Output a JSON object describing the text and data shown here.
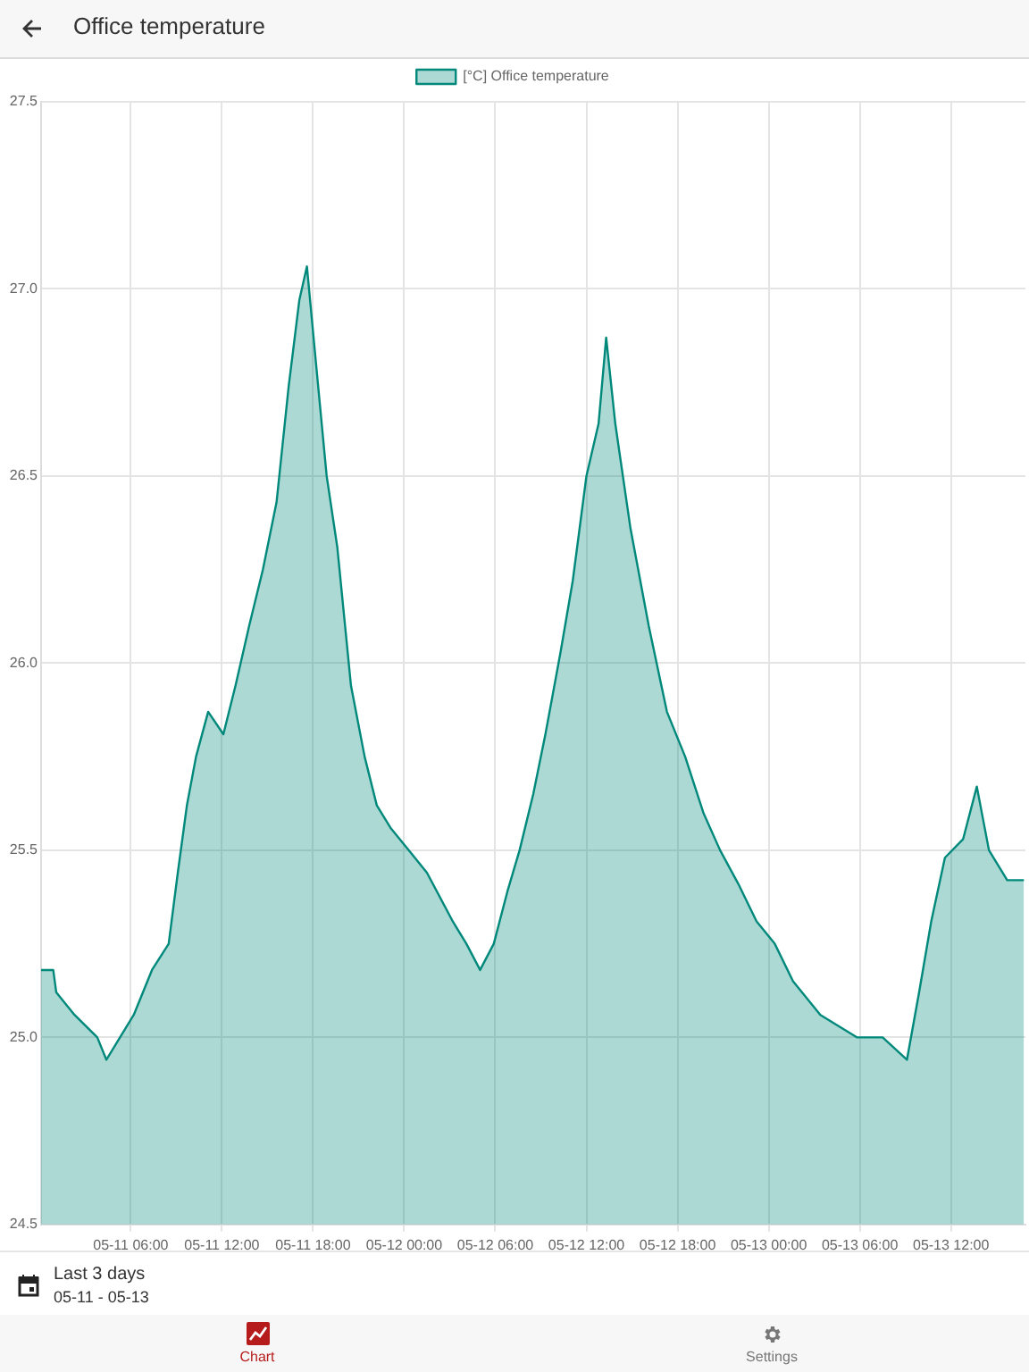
{
  "chart_data": {
    "type": "area",
    "title": "Office temperature",
    "x": [
      "--05-11T00:06",
      "--05-11T00:54",
      "--05-11T01:06",
      "--05-11T02:18",
      "--05-11T03:48",
      "--05-11T04:24",
      "--05-11T06:12",
      "--05-11T07:24",
      "--05-11T08:30",
      "--05-11T09:06",
      "--05-11T09:42",
      "--05-11T10:18",
      "--05-11T11:06",
      "--05-11T12:06",
      "--05-11T12:54",
      "--05-11T13:48",
      "--05-11T14:42",
      "--05-11T15:36",
      "--05-11T16:24",
      "--05-11T17:06",
      "--05-11T17:36",
      "--05-11T18:12",
      "--05-11T18:54",
      "--05-11T19:36",
      "--05-11T20:30",
      "--05-11T21:24",
      "--05-11T22:12",
      "--05-11T23:06",
      "--05-12T00:18",
      "--05-12T01:30",
      "--05-12T03:12",
      "--05-12T04:06",
      "--05-12T05:00",
      "--05-12T05:54",
      "--05-12T06:48",
      "--05-12T07:36",
      "--05-12T08:30",
      "--05-12T09:18",
      "--05-12T10:18",
      "--05-12T11:06",
      "--05-12T12:00",
      "--05-12T12:48",
      "--05-12T13:18",
      "--05-12T13:54",
      "--05-12T14:54",
      "--05-12T16:06",
      "--05-12T17:18",
      "--05-12T18:30",
      "--05-12T19:42",
      "--05-12T20:48",
      "--05-12T22:00",
      "--05-12T23:12",
      "--05-13T00:24",
      "--05-13T01:36",
      "--05-13T03:24",
      "--05-13T05:48",
      "--05-13T07:30",
      "--05-13T09:06",
      "--05-13T09:54",
      "--05-13T10:42",
      "--05-13T11:36",
      "--05-13T12:48",
      "--05-13T13:42",
      "--05-13T14:30",
      "--05-13T15:42",
      "--05-13T16:48"
    ],
    "series": [
      {
        "name": "[°C] Office temperature",
        "color": "#00897b",
        "values": [
          25.18,
          25.18,
          25.12,
          25.06,
          25.0,
          24.94,
          25.06,
          25.18,
          25.25,
          25.44,
          25.62,
          25.75,
          25.87,
          25.81,
          25.94,
          26.1,
          26.25,
          26.43,
          26.74,
          26.97,
          27.06,
          26.8,
          26.5,
          26.31,
          25.94,
          25.75,
          25.62,
          25.56,
          25.5,
          25.44,
          25.31,
          25.25,
          25.18,
          25.25,
          25.39,
          25.5,
          25.65,
          25.81,
          26.03,
          26.22,
          26.5,
          26.64,
          26.87,
          26.64,
          26.36,
          26.1,
          25.87,
          25.75,
          25.6,
          25.5,
          25.41,
          25.31,
          25.25,
          25.15,
          25.06,
          25.0,
          25.0,
          24.94,
          25.12,
          25.31,
          25.48,
          25.53,
          25.67,
          25.5,
          25.42,
          25.42
        ]
      }
    ],
    "xlim": [
      "--05-11T00:06",
      "--05-13T16:54"
    ],
    "xticks": [
      {
        "value": "--05-11T06:00",
        "label": "05-11 06:00"
      },
      {
        "value": "--05-11T12:00",
        "label": "05-11 12:00"
      },
      {
        "value": "--05-11T18:00",
        "label": "05-11 18:00"
      },
      {
        "value": "--05-12T00:00",
        "label": "05-12 00:00"
      },
      {
        "value": "--05-12T06:00",
        "label": "05-12 06:00"
      },
      {
        "value": "--05-12T12:00",
        "label": "05-12 12:00"
      },
      {
        "value": "--05-12T18:00",
        "label": "05-12 18:00"
      },
      {
        "value": "--05-13T00:00",
        "label": "05-13 00:00"
      },
      {
        "value": "--05-13T06:00",
        "label": "05-13 06:00"
      },
      {
        "value": "--05-13T12:00",
        "label": "05-13 12:00"
      }
    ],
    "ylim": [
      24.5,
      27.5
    ],
    "yticks": [
      {
        "value": 24.5,
        "label": "24.5"
      },
      {
        "value": 25,
        "label": "25.0"
      },
      {
        "value": 25.5,
        "label": "25.5"
      },
      {
        "value": 26,
        "label": "26.0"
      },
      {
        "value": 26.5,
        "label": "26.5"
      },
      {
        "value": 27,
        "label": "27.0"
      },
      {
        "value": 27.5,
        "label": "27.5"
      }
    ],
    "grid": true,
    "legend": "top",
    "marker": "none",
    "annotations": [
      "Last 3 days",
      "05-11 - 05-13",
      "Chart",
      "Settings"
    ]
  }
}
